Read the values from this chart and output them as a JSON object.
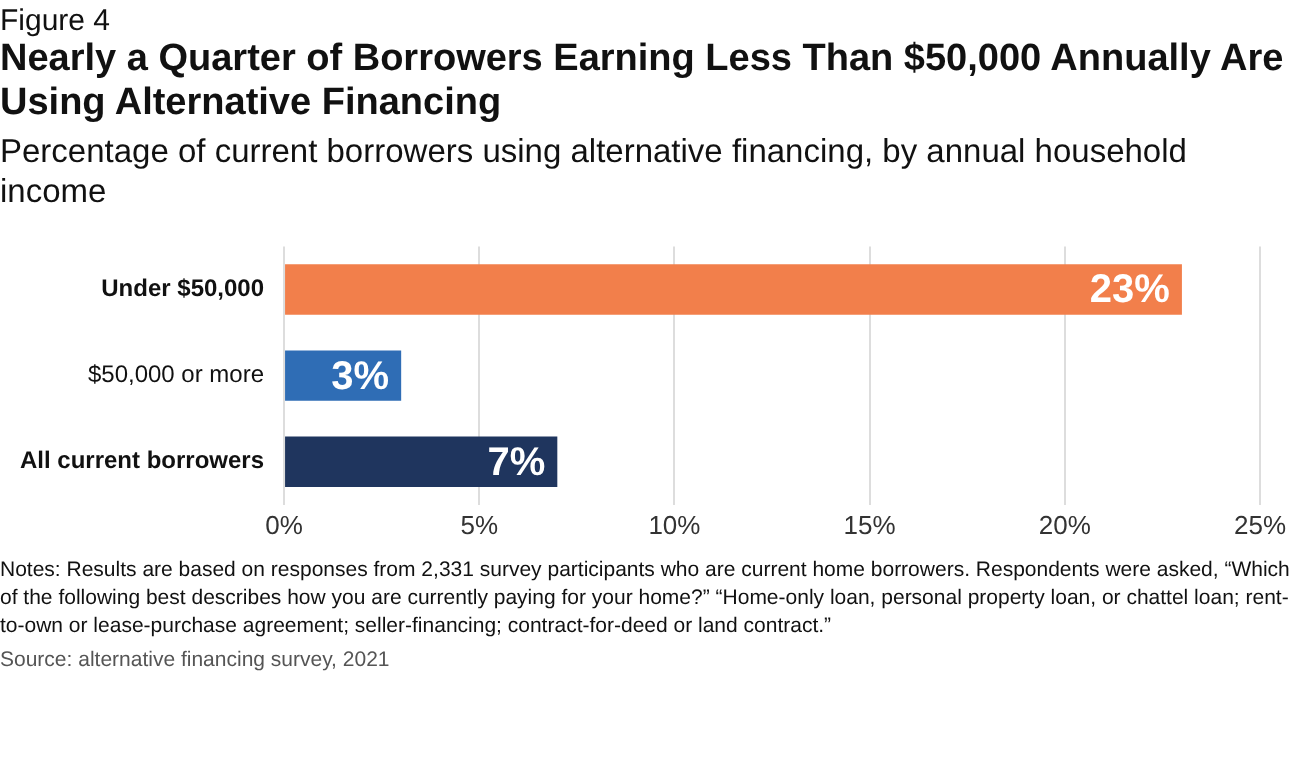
{
  "chart_data": {
    "type": "bar",
    "orientation": "horizontal",
    "title": "Nearly a Quarter of Borrowers Earning Less Than $50,000 Annually Are Using Alternative Financing",
    "subtitle": "Percentage of current borrowers using alternative financing, by annual household income",
    "annotations": [
      "Figure 4",
      "Notes: Results are based on responses from 2,331 survey participants who are current home borrowers. Respondents were asked, “Which of the following best describes how you are currently paying for your home?” “Home-only loan, personal property loan, or chattel loan; rent-to-own or lease-purchase agreement; seller-financing; contract-for-deed or land contract.”",
      "Source: alternative financing survey, 2021"
    ],
    "categories": [
      "Under $50,000",
      "$50,000 or more",
      "All current borrowers"
    ],
    "values": [
      23,
      3,
      7
    ],
    "colors": [
      "#f27f4b",
      "#2f6db5",
      "#1f355e"
    ],
    "value_labels": [
      "23%",
      "3%",
      "7%"
    ],
    "xlim": [
      0,
      25
    ],
    "xticks": [
      {
        "value": 0,
        "label": "0%"
      },
      {
        "value": 5,
        "label": "5%"
      },
      {
        "value": 10,
        "label": "10%"
      },
      {
        "value": 15,
        "label": "15%"
      },
      {
        "value": 20,
        "label": "20%"
      },
      {
        "value": 25,
        "label": "25%"
      }
    ],
    "grid": "x",
    "legend": false
  }
}
